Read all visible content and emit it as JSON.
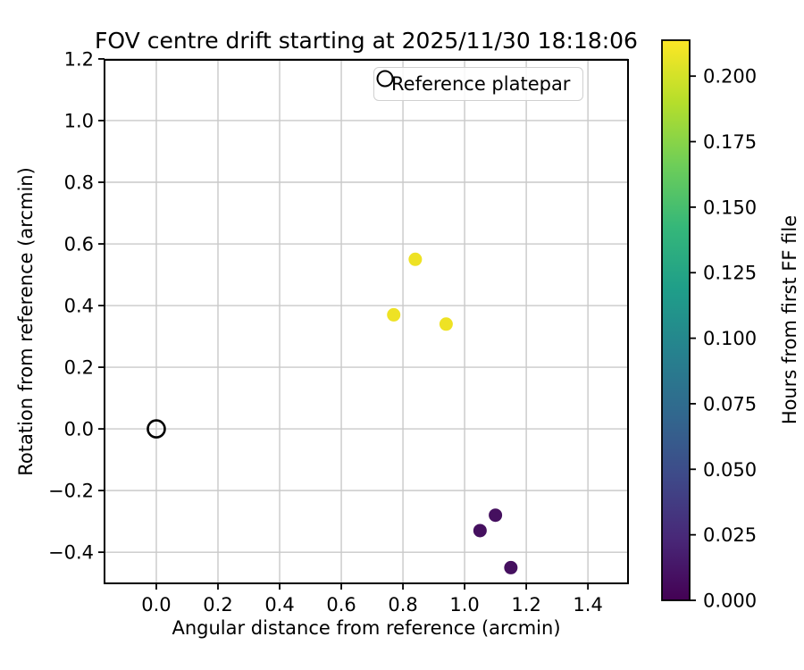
{
  "chart_data": {
    "type": "scatter",
    "title": "FOV centre drift starting at 2025/11/30 18:18:06",
    "xlabel": "Angular distance from reference (arcmin)",
    "ylabel": "Rotation from reference (arcmin)",
    "xlim": [
      -0.168,
      1.53
    ],
    "ylim": [
      -0.501,
      1.197
    ],
    "aspect": "equal",
    "grid": true,
    "x_ticks": {
      "values": [
        0.0,
        0.2,
        0.4,
        0.6,
        0.8,
        1.0,
        1.2,
        1.4
      ],
      "labels": [
        "0.0",
        "0.2",
        "0.4",
        "0.6",
        "0.8",
        "1.0",
        "1.2",
        "1.4"
      ]
    },
    "y_ticks": {
      "values": [
        -0.4,
        -0.2,
        0.0,
        0.2,
        0.4,
        0.6,
        0.8,
        1.0,
        1.2
      ],
      "labels": [
        "−0.4",
        "−0.2",
        "0.0",
        "0.2",
        "0.4",
        "0.6",
        "0.8",
        "1.0",
        "1.2"
      ]
    },
    "points": [
      {
        "x": 0.77,
        "y": 0.37,
        "color": "#eee224"
      },
      {
        "x": 0.84,
        "y": 0.55,
        "color": "#eee224"
      },
      {
        "x": 0.94,
        "y": 0.34,
        "color": "#eee224"
      },
      {
        "x": 1.05,
        "y": -0.33,
        "color": "#45105f"
      },
      {
        "x": 1.1,
        "y": -0.28,
        "color": "#45105f"
      },
      {
        "x": 1.15,
        "y": -0.45,
        "color": "#45105f"
      }
    ],
    "reference_marker": {
      "x": 0.0,
      "y": 0.0,
      "style": "open-circle-black"
    },
    "legend": {
      "label": "Reference platepar",
      "position": "upper right",
      "marker": "open-circle"
    },
    "colorbar": {
      "label": "Hours from first FF file",
      "vmin": 0.0,
      "vmax": 0.2137,
      "colormap": "viridis",
      "ticks": {
        "values": [
          0.0,
          0.025,
          0.05,
          0.075,
          0.1,
          0.125,
          0.15,
          0.175,
          0.2
        ],
        "labels": [
          "0.000",
          "0.025",
          "0.050",
          "0.075",
          "0.100",
          "0.125",
          "0.150",
          "0.175",
          "0.200"
        ]
      },
      "gradient_bottom_to_top": [
        "#440154",
        "#482878",
        "#3e4a89",
        "#31688e",
        "#26828e",
        "#1f9e89",
        "#35b779",
        "#6ece58",
        "#b5de2b",
        "#fde725"
      ]
    },
    "colors": {
      "grid": "#c9c9c9",
      "spine": "#000000",
      "text": "#000000"
    }
  }
}
